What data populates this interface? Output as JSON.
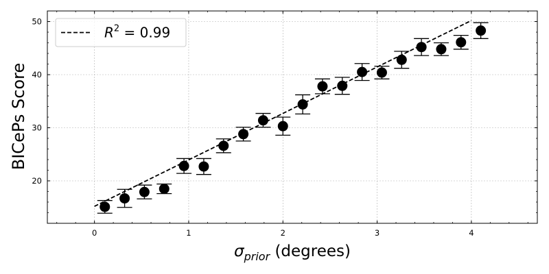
{
  "chart_data": {
    "type": "scatter",
    "xlabel_main": "σ",
    "xlabel_sub": "prior",
    "xlabel_rest": " (degrees)",
    "ylabel": "BICePs Score",
    "xlim": [
      -0.5,
      4.7
    ],
    "ylim": [
      12,
      52
    ],
    "xticks": [
      0,
      1,
      2,
      3,
      4
    ],
    "yticks": [
      20,
      30,
      40,
      50
    ],
    "grid": true,
    "legend": {
      "placement": "top-left",
      "label_r": "R",
      "label_exp": "2",
      "label_rest": " = 0.99"
    },
    "fit_line": {
      "x": [
        0.0,
        4.0
      ],
      "y": [
        15.2,
        50.2
      ]
    },
    "series": [
      {
        "x": [
          0.11,
          0.32,
          0.53,
          0.74,
          0.95,
          1.16,
          1.37,
          1.58,
          1.79,
          2.0,
          2.21,
          2.42,
          2.63,
          2.84,
          3.05,
          3.26,
          3.47,
          3.68,
          3.89,
          4.1
        ],
        "y": [
          15.1,
          16.7,
          17.9,
          18.5,
          22.8,
          22.7,
          26.6,
          28.8,
          31.4,
          30.3,
          34.4,
          37.8,
          37.9,
          40.5,
          40.4,
          42.8,
          45.2,
          44.8,
          46.1,
          48.3
        ],
        "err": [
          1.2,
          1.7,
          1.3,
          0.9,
          1.4,
          1.5,
          1.3,
          1.3,
          1.3,
          1.7,
          1.8,
          1.4,
          1.6,
          1.6,
          1.2,
          1.6,
          1.6,
          1.2,
          1.3,
          1.5
        ]
      }
    ],
    "colors": {
      "points": "#000000",
      "line": "#000000",
      "grid": "#b0b0b0"
    }
  }
}
